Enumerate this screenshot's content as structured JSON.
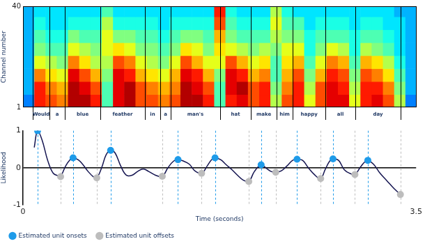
{
  "chart_data": [
    {
      "type": "heatmap",
      "y_label": "Channel number",
      "xlim": [
        0,
        3.5
      ],
      "ylim": [
        1,
        40
      ],
      "yticks": [
        1,
        40
      ],
      "tick_labels": "y",
      "time_bins": [
        0,
        0.1,
        0.2,
        0.3,
        0.4,
        0.5,
        0.6,
        0.7,
        0.8,
        0.9,
        1.0,
        1.1,
        1.2,
        1.3,
        1.4,
        1.5,
        1.6,
        1.7,
        1.8,
        1.9,
        2.0,
        2.1,
        2.2,
        2.3,
        2.4,
        2.5,
        2.6,
        2.7,
        2.8,
        2.9,
        3.0,
        3.1,
        3.2,
        3.3,
        3.4,
        3.5
      ],
      "channel_bins": [
        1,
        6,
        11,
        16,
        21,
        26,
        31,
        36,
        40
      ],
      "zlim": [
        0,
        1
      ],
      "cells": [
        [
          0.25,
          0.85,
          0.8,
          0.75,
          0.95,
          0.95,
          0.85,
          0.45,
          0.9,
          0.95,
          0.8,
          0.8,
          0.75,
          0.8,
          0.95,
          0.95,
          0.85,
          0.45,
          0.85,
          0.9,
          0.8,
          0.85,
          0.55,
          0.8,
          0.85,
          0.6,
          0.8,
          0.9,
          0.9,
          0.6,
          0.85,
          0.9,
          0.8,
          0.55,
          0.25
        ],
        [
          0.3,
          0.85,
          0.75,
          0.7,
          0.95,
          0.9,
          0.8,
          0.45,
          0.9,
          0.95,
          0.8,
          0.75,
          0.7,
          0.75,
          0.95,
          0.9,
          0.8,
          0.45,
          0.9,
          0.95,
          0.8,
          0.85,
          0.5,
          0.75,
          0.85,
          0.55,
          0.8,
          0.9,
          0.85,
          0.55,
          0.85,
          0.85,
          0.75,
          0.5,
          0.3
        ],
        [
          0.3,
          0.75,
          0.65,
          0.6,
          0.9,
          0.8,
          0.7,
          0.5,
          0.9,
          0.85,
          0.7,
          0.65,
          0.6,
          0.7,
          0.9,
          0.85,
          0.7,
          0.5,
          0.9,
          0.85,
          0.7,
          0.75,
          0.45,
          0.7,
          0.8,
          0.5,
          0.7,
          0.85,
          0.8,
          0.5,
          0.8,
          0.75,
          0.65,
          0.45,
          0.3
        ],
        [
          0.3,
          0.6,
          0.55,
          0.5,
          0.75,
          0.65,
          0.55,
          0.55,
          0.8,
          0.75,
          0.6,
          0.55,
          0.5,
          0.6,
          0.8,
          0.7,
          0.6,
          0.6,
          0.8,
          0.7,
          0.6,
          0.65,
          0.45,
          0.65,
          0.7,
          0.45,
          0.6,
          0.75,
          0.7,
          0.45,
          0.7,
          0.65,
          0.55,
          0.4,
          0.3
        ],
        [
          0.3,
          0.5,
          0.45,
          0.45,
          0.6,
          0.55,
          0.5,
          0.6,
          0.65,
          0.6,
          0.5,
          0.5,
          0.45,
          0.5,
          0.65,
          0.6,
          0.5,
          0.65,
          0.6,
          0.55,
          0.5,
          0.55,
          0.5,
          0.6,
          0.6,
          0.4,
          0.5,
          0.6,
          0.55,
          0.4,
          0.55,
          0.5,
          0.45,
          0.35,
          0.3
        ],
        [
          0.3,
          0.45,
          0.4,
          0.4,
          0.5,
          0.45,
          0.45,
          0.6,
          0.5,
          0.5,
          0.45,
          0.45,
          0.4,
          0.45,
          0.5,
          0.5,
          0.45,
          0.7,
          0.5,
          0.45,
          0.45,
          0.45,
          0.55,
          0.5,
          0.5,
          0.4,
          0.45,
          0.45,
          0.45,
          0.4,
          0.45,
          0.45,
          0.4,
          0.35,
          0.3
        ],
        [
          0.3,
          0.4,
          0.35,
          0.35,
          0.4,
          0.4,
          0.4,
          0.55,
          0.4,
          0.4,
          0.4,
          0.4,
          0.35,
          0.4,
          0.4,
          0.4,
          0.4,
          0.8,
          0.45,
          0.4,
          0.4,
          0.4,
          0.6,
          0.45,
          0.45,
          0.35,
          0.4,
          0.4,
          0.4,
          0.35,
          0.4,
          0.4,
          0.35,
          0.35,
          0.3
        ],
        [
          0.3,
          0.35,
          0.35,
          0.35,
          0.35,
          0.35,
          0.35,
          0.45,
          0.35,
          0.35,
          0.35,
          0.35,
          0.35,
          0.35,
          0.35,
          0.35,
          0.35,
          0.85,
          0.4,
          0.35,
          0.35,
          0.35,
          0.55,
          0.4,
          0.35,
          0.35,
          0.35,
          0.35,
          0.35,
          0.35,
          0.35,
          0.35,
          0.35,
          0.3,
          0.3
        ]
      ],
      "boundaries": [
        0.087,
        0.235,
        0.372,
        0.688,
        1.084,
        1.221,
        1.313,
        1.753,
        2.026,
        2.255,
        2.398,
        2.689,
        2.955,
        3.358
      ],
      "words": [
        "Would",
        "a",
        "blue",
        "feather",
        "in",
        "a",
        "man's",
        "hat",
        "make",
        "him",
        "happy",
        "all",
        "day"
      ]
    },
    {
      "type": "line",
      "y_label": "Likelihood",
      "x_label": "Time (seconds)",
      "xlim": [
        0,
        3.5
      ],
      "xticks": [
        0,
        3.5
      ],
      "ylim": [
        -1,
        1
      ],
      "yticks": [
        -1,
        0,
        1
      ],
      "legend": "bottom",
      "series": [
        {
          "type": "line",
          "color": "#141450",
          "x": [
            0.1,
            0.13,
            0.17,
            0.22,
            0.27,
            0.32,
            0.335,
            0.38,
            0.42,
            0.446,
            0.49,
            0.53,
            0.58,
            0.63,
            0.657,
            0.7,
            0.74,
            0.78,
            0.82,
            0.87,
            0.92,
            0.97,
            1.02,
            1.07,
            1.12,
            1.18,
            1.24,
            1.29,
            1.34,
            1.38,
            1.43,
            1.48,
            1.53,
            1.59,
            1.64,
            1.68,
            1.71,
            1.76,
            1.81,
            1.86,
            1.91,
            1.96,
            2.01,
            2.06,
            2.12,
            2.17,
            2.21,
            2.25,
            2.3,
            2.35,
            2.4,
            2.44,
            2.49,
            2.54,
            2.6,
            2.65,
            2.69,
            2.73,
            2.76,
            2.81,
            2.86,
            2.91,
            2.955,
            3.0,
            3.04,
            3.07,
            3.12,
            3.18,
            3.24,
            3.3,
            3.36
          ],
          "values": [
            0.55,
            1.0,
            0.75,
            0.2,
            -0.15,
            -0.22,
            -0.24,
            0.05,
            0.22,
            0.27,
            0.22,
            0.1,
            -0.1,
            -0.25,
            -0.27,
            0.0,
            0.35,
            0.47,
            0.4,
            0.05,
            -0.2,
            -0.2,
            -0.1,
            -0.03,
            -0.1,
            -0.2,
            -0.23,
            0.0,
            0.18,
            0.22,
            0.18,
            0.1,
            -0.08,
            -0.15,
            0.05,
            0.22,
            0.27,
            0.22,
            0.08,
            -0.05,
            -0.2,
            -0.33,
            -0.37,
            -0.1,
            0.08,
            -0.02,
            -0.1,
            -0.12,
            -0.08,
            0.05,
            0.2,
            0.23,
            0.2,
            0.0,
            -0.2,
            -0.29,
            -0.05,
            0.18,
            0.24,
            0.2,
            -0.05,
            -0.15,
            -0.18,
            0.0,
            0.15,
            0.2,
            0.1,
            -0.15,
            -0.35,
            -0.55,
            -0.72
          ]
        },
        {
          "name": "Estimated unit onsets",
          "type": "scatter",
          "marker": "circle",
          "color": "#1e9be9",
          "x": [
            0.13,
            0.446,
            0.78,
            1.38,
            1.71,
            2.12,
            2.44,
            2.76,
            3.07
          ],
          "values": [
            1.0,
            0.27,
            0.47,
            0.22,
            0.27,
            0.08,
            0.23,
            0.24,
            0.2
          ]
        },
        {
          "name": "Estimated unit offsets",
          "type": "scatter",
          "marker": "circle",
          "color": "#bdbdbd",
          "x": [
            0.335,
            0.657,
            1.24,
            1.59,
            2.01,
            2.25,
            2.65,
            2.955,
            3.36
          ],
          "values": [
            -0.24,
            -0.27,
            -0.23,
            -0.15,
            -0.37,
            -0.12,
            -0.29,
            -0.18,
            -0.72
          ]
        }
      ]
    }
  ]
}
